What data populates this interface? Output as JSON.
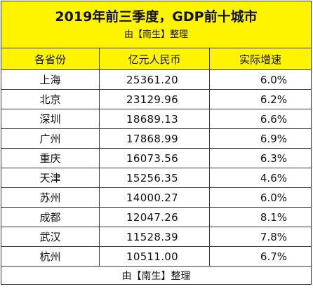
{
  "colors": {
    "header_background": "#fff400",
    "border": "#3a3a3a",
    "text": "#111111",
    "body_background": "#ffffff"
  },
  "title": "2019年前三季度，GDP前十城市",
  "subtitle": "由【南生】整理",
  "columns": [
    "各省份",
    "亿元人民币",
    "实际增速"
  ],
  "rows": [
    {
      "name": "上海",
      "gdp": "25361.20",
      "growth": "6.0%"
    },
    {
      "name": "北京",
      "gdp": "23129.96",
      "growth": "6.2%"
    },
    {
      "name": "深圳",
      "gdp": "18689.13",
      "growth": "6.6%"
    },
    {
      "name": "广州",
      "gdp": "17868.99",
      "growth": "6.9%"
    },
    {
      "name": "重庆",
      "gdp": "16073.56",
      "growth": "6.3%"
    },
    {
      "name": "天津",
      "gdp": "15256.35",
      "growth": "4.6%"
    },
    {
      "name": "苏州",
      "gdp": "14000.27",
      "growth": "6.0%"
    },
    {
      "name": "成都",
      "gdp": "12047.26",
      "growth": "8.1%"
    },
    {
      "name": "武汉",
      "gdp": "11528.39",
      "growth": "7.8%"
    },
    {
      "name": "杭州",
      "gdp": "10511.00",
      "growth": "6.7%"
    }
  ],
  "footer": "由【南生】整理"
}
